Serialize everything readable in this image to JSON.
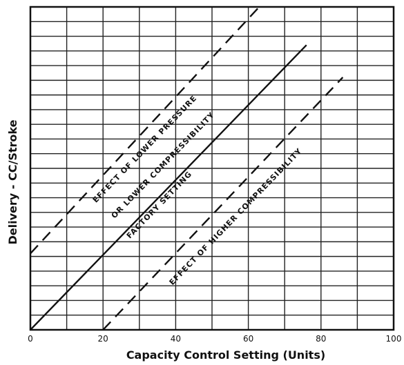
{
  "chart_data": {
    "type": "line",
    "title": "",
    "xlabel": "Capacity Control Setting (Units)",
    "ylabel": "Delivery - CC/Stroke",
    "xlim": [
      0,
      100
    ],
    "ylim": [
      0,
      22
    ],
    "x_ticks": [
      "0",
      "20",
      "40",
      "60",
      "80",
      "100"
    ],
    "grid": true,
    "grid_x_step": 10,
    "grid_y_step": 1,
    "series": [
      {
        "x": [
          0,
          66
        ],
        "y": [
          5.2,
          22.8
        ],
        "style": "dashed"
      },
      {
        "x": [
          0,
          76
        ],
        "y": [
          0,
          19.4
        ],
        "style": "solid"
      },
      {
        "x": [
          20,
          86
        ],
        "y": [
          0,
          17.2
        ],
        "style": "dashed"
      }
    ],
    "annotations": [
      {
        "text": "EFFECT OF LOWER PRESSURE",
        "x": 32,
        "y": 12.2,
        "angle": -46
      },
      {
        "text": "OR LOWER COMPRESSIBILITY",
        "x": 37,
        "y": 11.1,
        "angle": -46
      },
      {
        "text": "FACTORY SETTING",
        "x": 36,
        "y": 8.4,
        "angle": -46
      },
      {
        "text": "EFFECT OF HIGHER COMPRESSIBILITY",
        "x": 57,
        "y": 7.6,
        "angle": -46
      }
    ]
  }
}
